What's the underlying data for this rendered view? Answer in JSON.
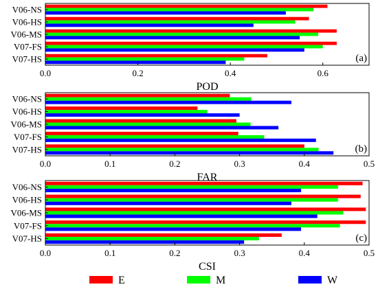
{
  "colors": {
    "E": "#ff0000",
    "M": "#00ff00",
    "W": "#0000ff"
  },
  "legend": [
    {
      "key": "E",
      "label": "E"
    },
    {
      "key": "M",
      "label": "M"
    },
    {
      "key": "W",
      "label": "W"
    }
  ],
  "chart_data": [
    {
      "type": "bar",
      "orientation": "horizontal",
      "panel_tag": "(a)",
      "xlabel": "POD",
      "xlim": [
        0,
        0.7
      ],
      "xticks": [
        "0.0",
        "0.2",
        "0.4",
        "0.6"
      ],
      "xtick_values": [
        0.0,
        0.2,
        0.4,
        0.6
      ],
      "categories": [
        "V06-NS",
        "V06-HS",
        "V06-MS",
        "V07-FS",
        "V07-HS"
      ],
      "series": [
        {
          "name": "E",
          "values": [
            0.61,
            0.57,
            0.63,
            0.63,
            0.48
          ]
        },
        {
          "name": "M",
          "values": [
            0.58,
            0.54,
            0.59,
            0.6,
            0.43
          ]
        },
        {
          "name": "W",
          "values": [
            0.52,
            0.45,
            0.55,
            0.56,
            0.39
          ]
        }
      ]
    },
    {
      "type": "bar",
      "orientation": "horizontal",
      "panel_tag": "(b)",
      "xlabel": "FAR",
      "xlim": [
        0,
        0.5
      ],
      "xticks": [
        "0.0",
        "0.1",
        "0.2",
        "0.3",
        "0.4",
        "0.5"
      ],
      "xtick_values": [
        0.0,
        0.1,
        0.2,
        0.3,
        0.4,
        0.5
      ],
      "categories": [
        "V06-NS",
        "V06-HS",
        "V06-MS",
        "V07-FS",
        "V07-HS"
      ],
      "series": [
        {
          "name": "E",
          "values": [
            0.285,
            0.235,
            0.295,
            0.298,
            0.4
          ]
        },
        {
          "name": "M",
          "values": [
            0.318,
            0.25,
            0.317,
            0.338,
            0.422
          ]
        },
        {
          "name": "W",
          "values": [
            0.38,
            0.3,
            0.36,
            0.418,
            0.445
          ]
        }
      ]
    },
    {
      "type": "bar",
      "orientation": "horizontal",
      "panel_tag": "(c)",
      "xlabel": "CSI",
      "xlim": [
        0,
        0.5
      ],
      "xticks": [
        "0.0",
        "0.1",
        "0.2",
        "0.3",
        "0.4",
        "0.5"
      ],
      "xtick_values": [
        0.0,
        0.1,
        0.2,
        0.3,
        0.4,
        0.5
      ],
      "categories": [
        "V06-NS",
        "V06-HS",
        "V06-MS",
        "V07-FS",
        "V07-HS"
      ],
      "series": [
        {
          "name": "E",
          "values": [
            0.49,
            0.487,
            0.495,
            0.495,
            0.365
          ]
        },
        {
          "name": "M",
          "values": [
            0.452,
            0.452,
            0.46,
            0.455,
            0.33
          ]
        },
        {
          "name": "W",
          "values": [
            0.395,
            0.38,
            0.42,
            0.395,
            0.307
          ]
        }
      ]
    }
  ]
}
